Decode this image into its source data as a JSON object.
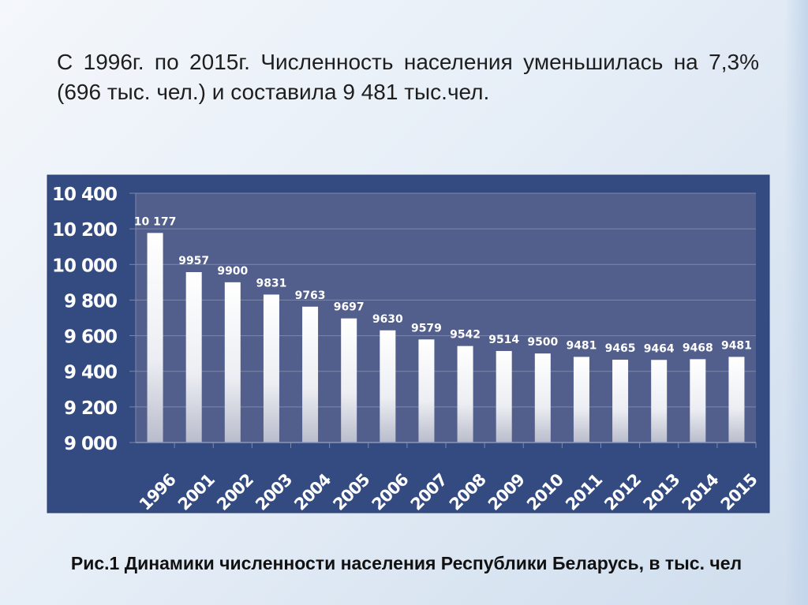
{
  "heading": "С 1996г. по 2015г. Численность населения уменьшилась на 7,3% (696 тыс. чел.) и составила 9 481 тыс.чел.",
  "caption": "Рис.1 Динамики численности населения Республики Беларусь, в тыс. чел",
  "colors": {
    "frame": "#344b82",
    "plot": "#525f8c",
    "bar_top": "#ffffff",
    "bar_bottom": "#b9bccb",
    "text": "#ffffff"
  },
  "chart_data": {
    "type": "bar",
    "title": "",
    "xlabel": "",
    "ylabel": "",
    "ylim": [
      9000,
      10400
    ],
    "grid": true,
    "yticks": [
      9000,
      9200,
      9400,
      9600,
      9800,
      10000,
      10200,
      10400
    ],
    "ytick_labels": [
      "9 000",
      "9 200",
      "9 400",
      "9 600",
      "9 800",
      "10 000",
      "10 200",
      "10 400"
    ],
    "categories": [
      "1996",
      "2001",
      "2002",
      "2003",
      "2004",
      "2005",
      "2006",
      "2007",
      "2008",
      "2009",
      "2010",
      "2011",
      "2012",
      "2013",
      "2014",
      "2015"
    ],
    "values": [
      10177,
      9957,
      9900,
      9831,
      9763,
      9697,
      9630,
      9579,
      9542,
      9514,
      9500,
      9481,
      9465,
      9464,
      9468,
      9481
    ],
    "data_labels": [
      "10 177",
      "9957",
      "9900",
      "9831",
      "9763",
      "9697",
      "9630",
      "9579",
      "9542",
      "9514",
      "9500",
      "9481",
      "9465",
      "9464",
      "9468",
      "9481"
    ]
  }
}
